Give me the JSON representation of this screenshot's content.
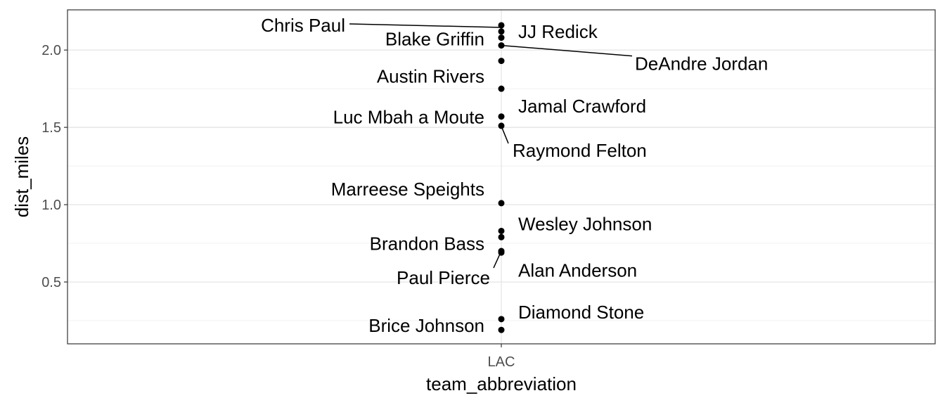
{
  "chart_data": {
    "type": "scatter",
    "xlabel": "team_abbreviation",
    "ylabel": "dist_miles",
    "categories": [
      "LAC"
    ],
    "ylim": [
      0.1,
      2.26
    ],
    "yticks": [
      0.5,
      1.0,
      1.5,
      2.0
    ],
    "ytick_labels": [
      "0.5",
      "1.0",
      "1.5",
      "2.0"
    ],
    "grid": true,
    "theme": "bw",
    "point_color": "#000000",
    "series": [
      {
        "points": [
          {
            "x": "LAC",
            "y": 2.16,
            "label": "Chris Paul"
          },
          {
            "x": "LAC",
            "y": 2.12,
            "label": "JJ Redick"
          },
          {
            "x": "LAC",
            "y": 2.08,
            "label": "Blake Griffin"
          },
          {
            "x": "LAC",
            "y": 2.03,
            "label": "DeAndre Jordan"
          },
          {
            "x": "LAC",
            "y": 1.93,
            "label": "Austin Rivers"
          },
          {
            "x": "LAC",
            "y": 1.75,
            "label": "Jamal Crawford"
          },
          {
            "x": "LAC",
            "y": 1.57,
            "label": "Luc Mbah a Moute"
          },
          {
            "x": "LAC",
            "y": 1.51,
            "label": "Raymond Felton"
          },
          {
            "x": "LAC",
            "y": 1.01,
            "label": "Marreese Speights"
          },
          {
            "x": "LAC",
            "y": 0.83,
            "label": "Wesley Johnson"
          },
          {
            "x": "LAC",
            "y": 0.79,
            "label": "Brandon Bass"
          },
          {
            "x": "LAC",
            "y": 0.7,
            "label": "Paul Pierce"
          },
          {
            "x": "LAC",
            "y": 0.69,
            "label": "Alan Anderson"
          },
          {
            "x": "LAC",
            "y": 0.26,
            "label": "Diamond Stone"
          },
          {
            "x": "LAC",
            "y": 0.19,
            "label": "Brice Johnson"
          }
        ]
      }
    ]
  }
}
